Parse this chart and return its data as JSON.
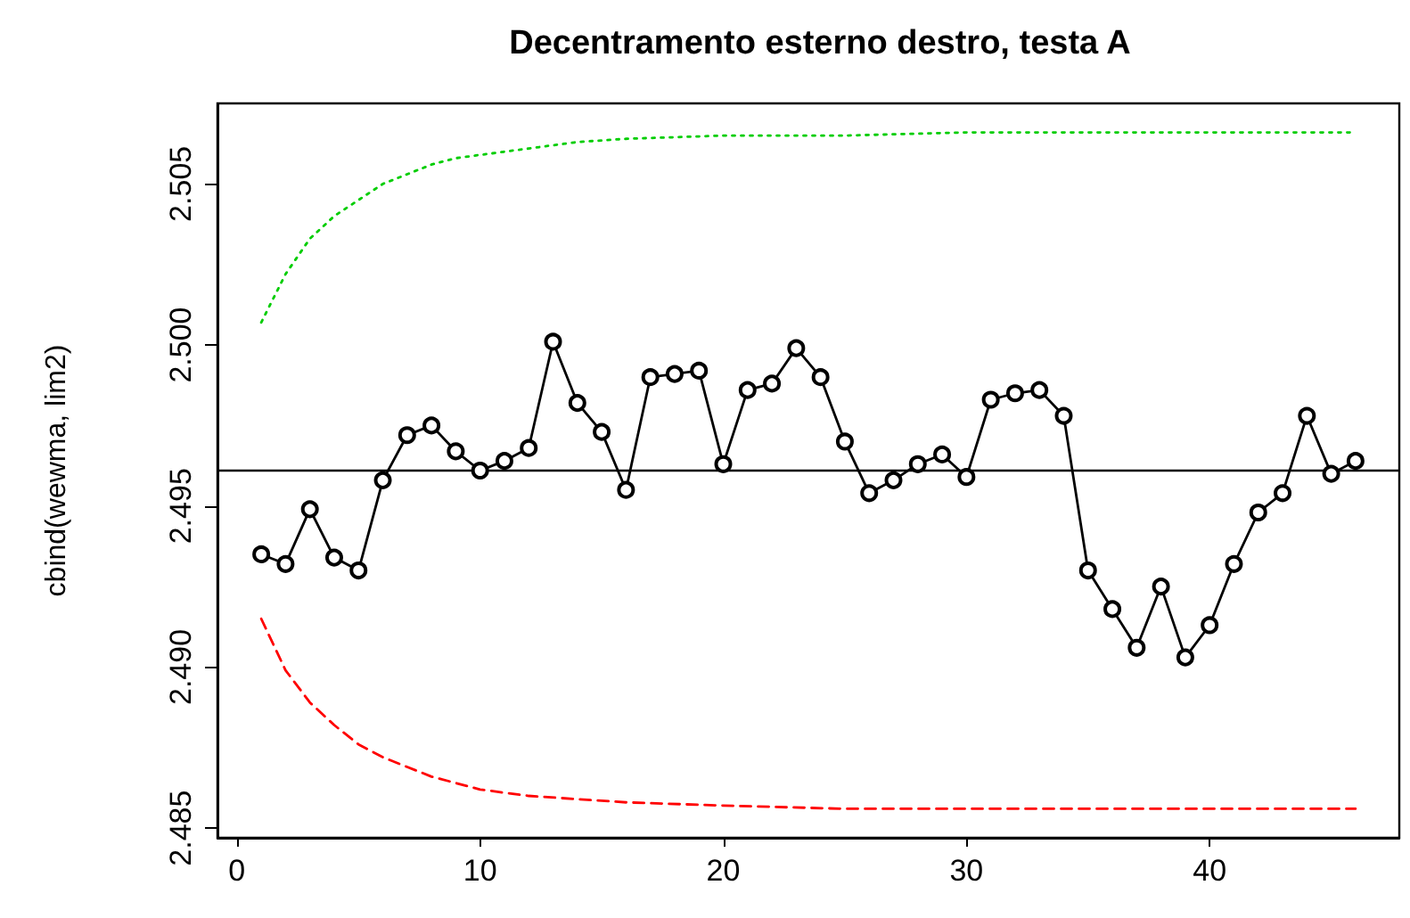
{
  "chart_data": {
    "type": "line",
    "title": "Decentramento esterno destro, testa A",
    "ylabel": "cbind(wewma, lim2)",
    "xlim": [
      -0.8,
      47.8
    ],
    "xticks": [
      0,
      10,
      20,
      30,
      40
    ],
    "ylim": [
      2.4847,
      2.5075
    ],
    "yticks": [
      2.485,
      {
        "value": 2.49,
        "label": "2.490"
      },
      2.495,
      {
        "value": 2.5,
        "label": "2.500"
      },
      2.505
    ],
    "ref_lines": [
      {
        "axis": "y",
        "value": 2.4961,
        "color": "#000000",
        "line_style": "solid"
      }
    ],
    "series": [
      {
        "color": "#000000",
        "marker": "circle",
        "line_style": "solid",
        "x": [
          1,
          2,
          3,
          4,
          5,
          6,
          7,
          8,
          9,
          10,
          11,
          12,
          13,
          14,
          15,
          16,
          17,
          18,
          19,
          20,
          21,
          22,
          23,
          24,
          25,
          26,
          27,
          28,
          29,
          30,
          31,
          32,
          33,
          34,
          35,
          36,
          37,
          38,
          39,
          40,
          41,
          42,
          43,
          44,
          45,
          46
        ],
        "values": [
          2.4935,
          2.4932,
          2.4949,
          2.4934,
          2.493,
          2.4958,
          2.4972,
          2.4975,
          2.4967,
          2.4961,
          2.4964,
          2.4968,
          2.5001,
          2.4982,
          2.4973,
          2.4955,
          2.499,
          2.4991,
          2.4992,
          2.4963,
          2.4986,
          2.4988,
          2.4999,
          2.499,
          2.497,
          2.4954,
          2.4958,
          2.4963,
          2.4966,
          2.4959,
          2.4983,
          2.4985,
          2.4986,
          2.4978,
          2.493,
          2.4918,
          2.4906,
          2.4925,
          2.4903,
          2.4913,
          2.4932,
          2.4948,
          2.4954,
          2.4978,
          2.496,
          2.4964
        ]
      },
      {
        "color": "#00cd00",
        "marker": "none",
        "line_style": "dotted",
        "x": [
          1,
          2,
          3,
          4,
          5,
          6,
          7,
          8,
          9,
          10,
          12,
          14,
          16,
          20,
          25,
          30,
          46
        ],
        "values": [
          2.5007,
          2.5022,
          2.5033,
          2.504,
          2.5045,
          2.505,
          2.5053,
          2.5056,
          2.5058,
          2.5059,
          2.5061,
          2.5063,
          2.5064,
          2.5065,
          2.5065,
          2.5066,
          2.5066
        ]
      },
      {
        "color": "#ff0000",
        "marker": "none",
        "line_style": "dashed",
        "x": [
          1,
          2,
          3,
          4,
          5,
          6,
          7,
          8,
          9,
          10,
          12,
          14,
          16,
          20,
          25,
          30,
          46
        ],
        "values": [
          2.4915,
          2.4899,
          2.4889,
          2.4882,
          2.4876,
          2.4872,
          2.4869,
          2.4866,
          2.4864,
          2.4862,
          2.486,
          2.4859,
          2.4858,
          2.4857,
          2.4856,
          2.4856,
          2.4856
        ]
      }
    ]
  }
}
